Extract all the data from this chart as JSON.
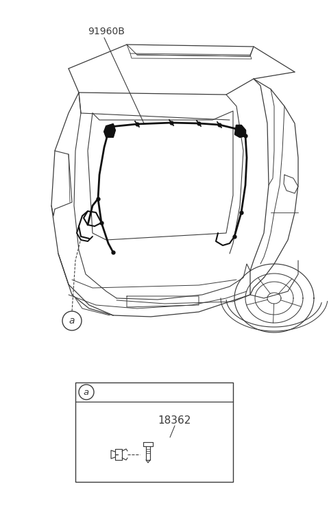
{
  "bg_color": "#ffffff",
  "line_color": "#3a3a3a",
  "wiring_color": "#111111",
  "part_label_1": "91960B",
  "part_label_2": "18362",
  "callout_a": "a",
  "fig_width": 4.8,
  "fig_height": 7.44,
  "dpi": 100,
  "car_line_lw": 0.9,
  "wiring_lw": 2.0
}
